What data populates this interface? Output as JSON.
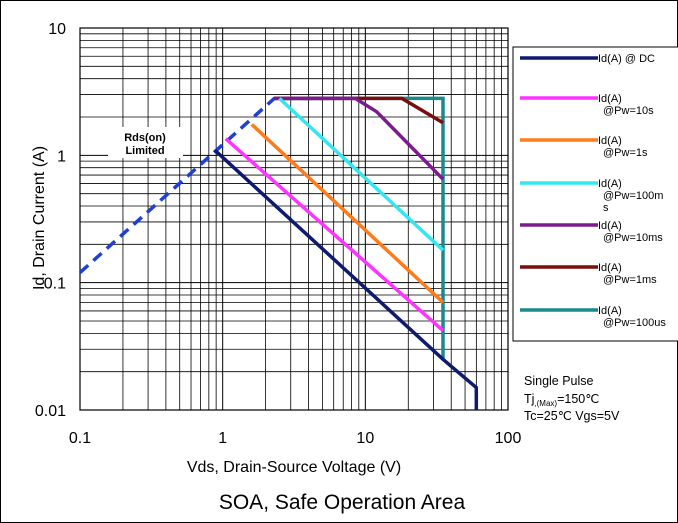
{
  "chart_data": {
    "type": "line",
    "title": "SOA, Safe Operation Area",
    "xlabel": "Vds, Drain-Source Voltage (V)",
    "ylabel": "Id, Drain Current (A)",
    "xscale": "log",
    "yscale": "log",
    "xlim": [
      0.1,
      100
    ],
    "ylim": [
      0.01,
      10
    ],
    "x_ticks": [
      "0.1",
      "1",
      "10",
      "100"
    ],
    "y_ticks": [
      "0.01",
      "0.1",
      "1",
      "10"
    ],
    "grid": true,
    "legend_position": "right",
    "annotation": {
      "line1": "Rds(on)",
      "line2": "Limited"
    },
    "conditions": {
      "line1": "Single Pulse",
      "line2_main": "Tj",
      "line2_sub": ",(Max)",
      "line2_value": "=150℃",
      "line3": "Tc=25℃ Vgs=5V"
    },
    "rds_limit_line": {
      "color": "#1f3fd6",
      "dashed": true,
      "points": [
        [
          0.1,
          0.12
        ],
        [
          2.3,
          2.8
        ],
        [
          5.0,
          2.8
        ]
      ]
    },
    "series": [
      {
        "name": "Id(A) @ DC",
        "label_lines": [
          "Id(A) @ DC"
        ],
        "color": "#0e1a6e",
        "points": [
          [
            0.88,
            1.1
          ],
          [
            35,
            0.025
          ],
          [
            60,
            0.015
          ],
          [
            60,
            0.01
          ]
        ]
      },
      {
        "name": "Id(A) @Pw=10s",
        "label_lines": [
          "Id(A)",
          "@Pw=10s"
        ],
        "color": "#ff33ff",
        "points": [
          [
            1.05,
            1.35
          ],
          [
            35,
            0.042
          ]
        ]
      },
      {
        "name": "Id(A) @Pw=1s",
        "label_lines": [
          "Id(A)",
          "@Pw=1s"
        ],
        "color": "#ff7a1a",
        "points": [
          [
            1.6,
            1.75
          ],
          [
            35,
            0.07
          ]
        ]
      },
      {
        "name": "Id(A) @Pw=100ms",
        "label_lines": [
          "Id(A)",
          "@Pw=100m",
          "s"
        ],
        "color": "#33e6f0",
        "points": [
          [
            2.5,
            2.8
          ],
          [
            35,
            0.18
          ]
        ]
      },
      {
        "name": "Id(A) @Pw=10ms",
        "label_lines": [
          "Id(A)",
          "@Pw=10ms"
        ],
        "color": "#7a1c8c",
        "points": [
          [
            2.3,
            2.8
          ],
          [
            8.5,
            2.8
          ],
          [
            12,
            2.2
          ],
          [
            35,
            0.65
          ]
        ]
      },
      {
        "name": "Id(A) @Pw=1ms",
        "label_lines": [
          "Id(A)",
          "@Pw=1ms"
        ],
        "color": "#7a0e0e",
        "points": [
          [
            2.3,
            2.8
          ],
          [
            18,
            2.8
          ],
          [
            35,
            1.8
          ]
        ]
      },
      {
        "name": "Id(A) @Pw=100us",
        "label_lines": [
          "Id(A)",
          "@Pw=100us"
        ],
        "color": "#1a8a8a",
        "points": [
          [
            2.3,
            2.8
          ],
          [
            35,
            2.8
          ],
          [
            35,
            0.025
          ]
        ]
      }
    ]
  }
}
